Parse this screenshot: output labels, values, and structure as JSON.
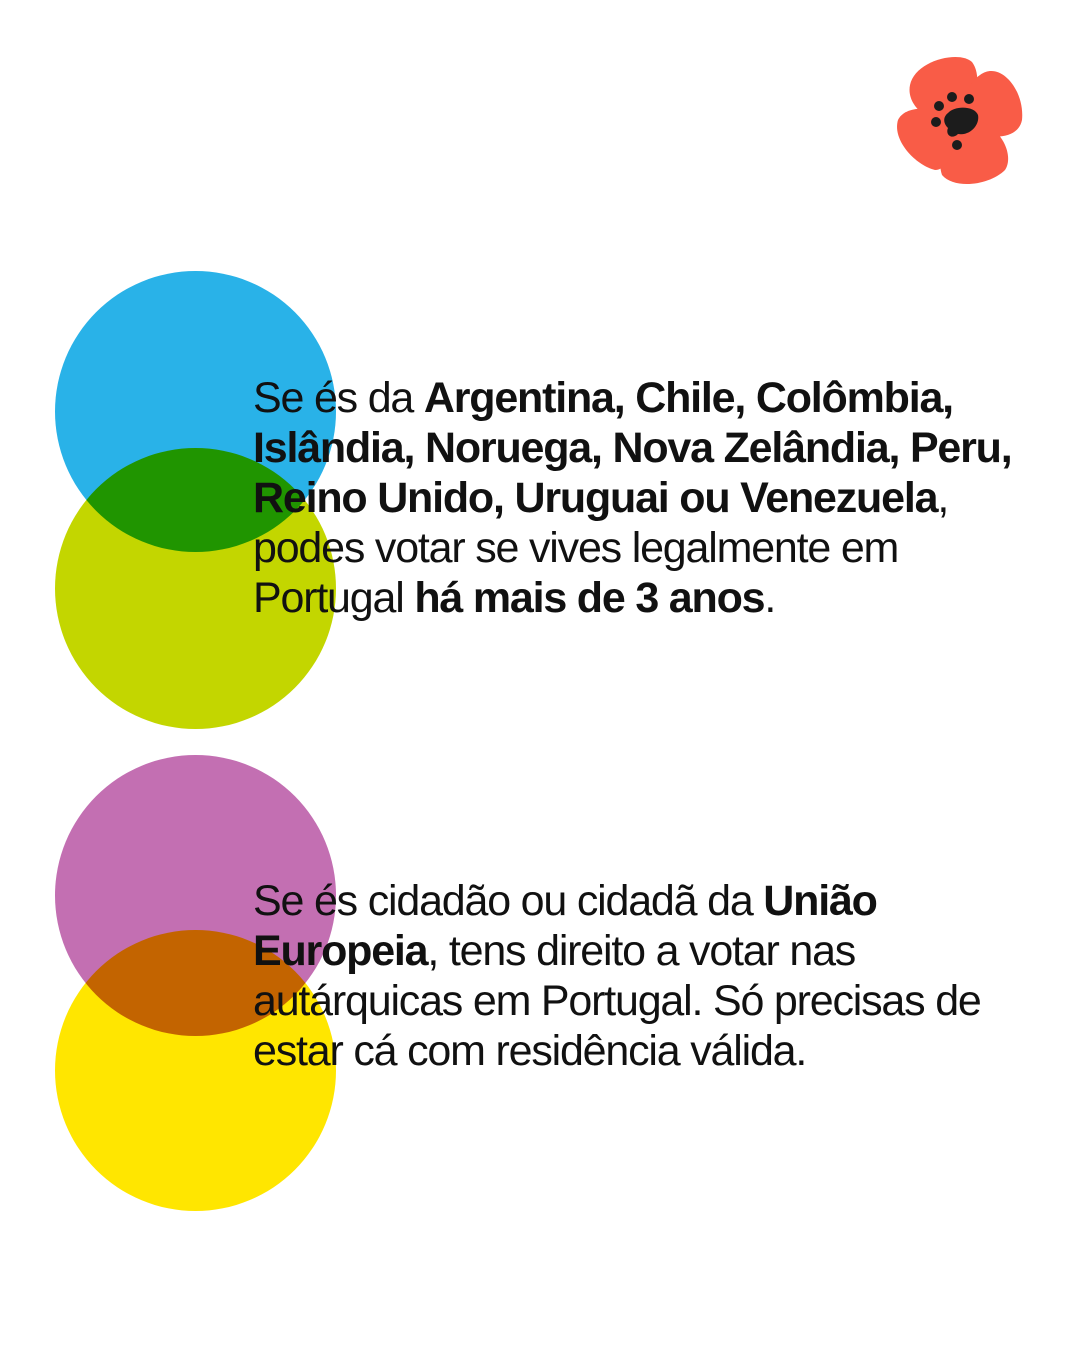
{
  "colors": {
    "blue": "#29b2e8",
    "lime": "#c3d600",
    "purple": "#c36fb2",
    "yellow": "#ffe600",
    "logo_red": "#f9533d",
    "logo_dark": "#1c1c1c"
  },
  "logo": {
    "icon": "poppy-flower-icon"
  },
  "block1": {
    "s0": "Se és da ",
    "s1": "Argentina, Chile, Colômbia, Islândia, Noruega, Nova Zelândia, Peru, Reino Unido, Uruguai ou Venezuela",
    "s2": ", podes votar se vives legalmente em Portugal ",
    "s3": "há mais de 3 anos",
    "s4": "."
  },
  "block2": {
    "s0": "Se és cidadão ou cidadã da ",
    "s1": "União Europeia",
    "s2": ", tens direito a votar nas autárquicas em Portugal. Só precisas de estar cá com residência válida."
  }
}
